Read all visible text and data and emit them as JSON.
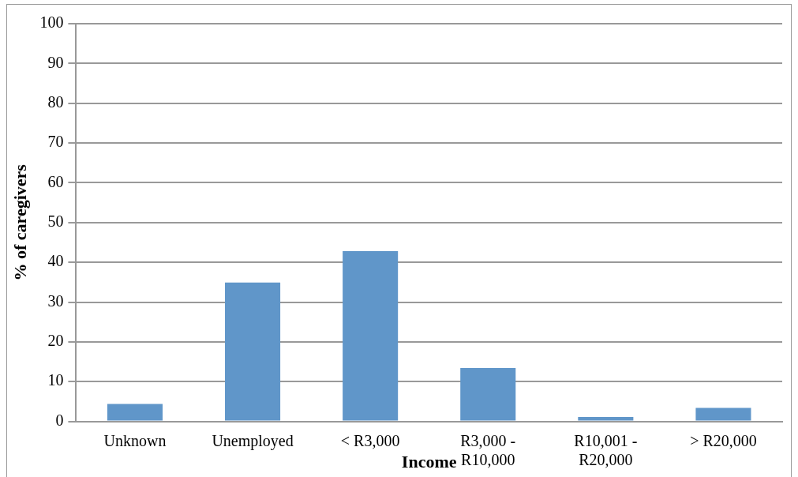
{
  "chart_data": {
    "type": "bar",
    "xlabel": "Income",
    "ylabel": "% of caregivers",
    "categories": [
      "Unknown",
      "Unemployed",
      "< R3,000",
      "R3,000 -\nR10,000",
      "R10,001 -\nR20,000",
      "> R20,000"
    ],
    "values": [
      4.4,
      34.9,
      42.8,
      13.4,
      1.1,
      3.4
    ],
    "color": "#6096c9",
    "ylim": [
      0,
      100
    ],
    "yticks": [
      0,
      10,
      20,
      30,
      40,
      50,
      60,
      70,
      80,
      90,
      100
    ],
    "grid": "y",
    "legend": false
  }
}
